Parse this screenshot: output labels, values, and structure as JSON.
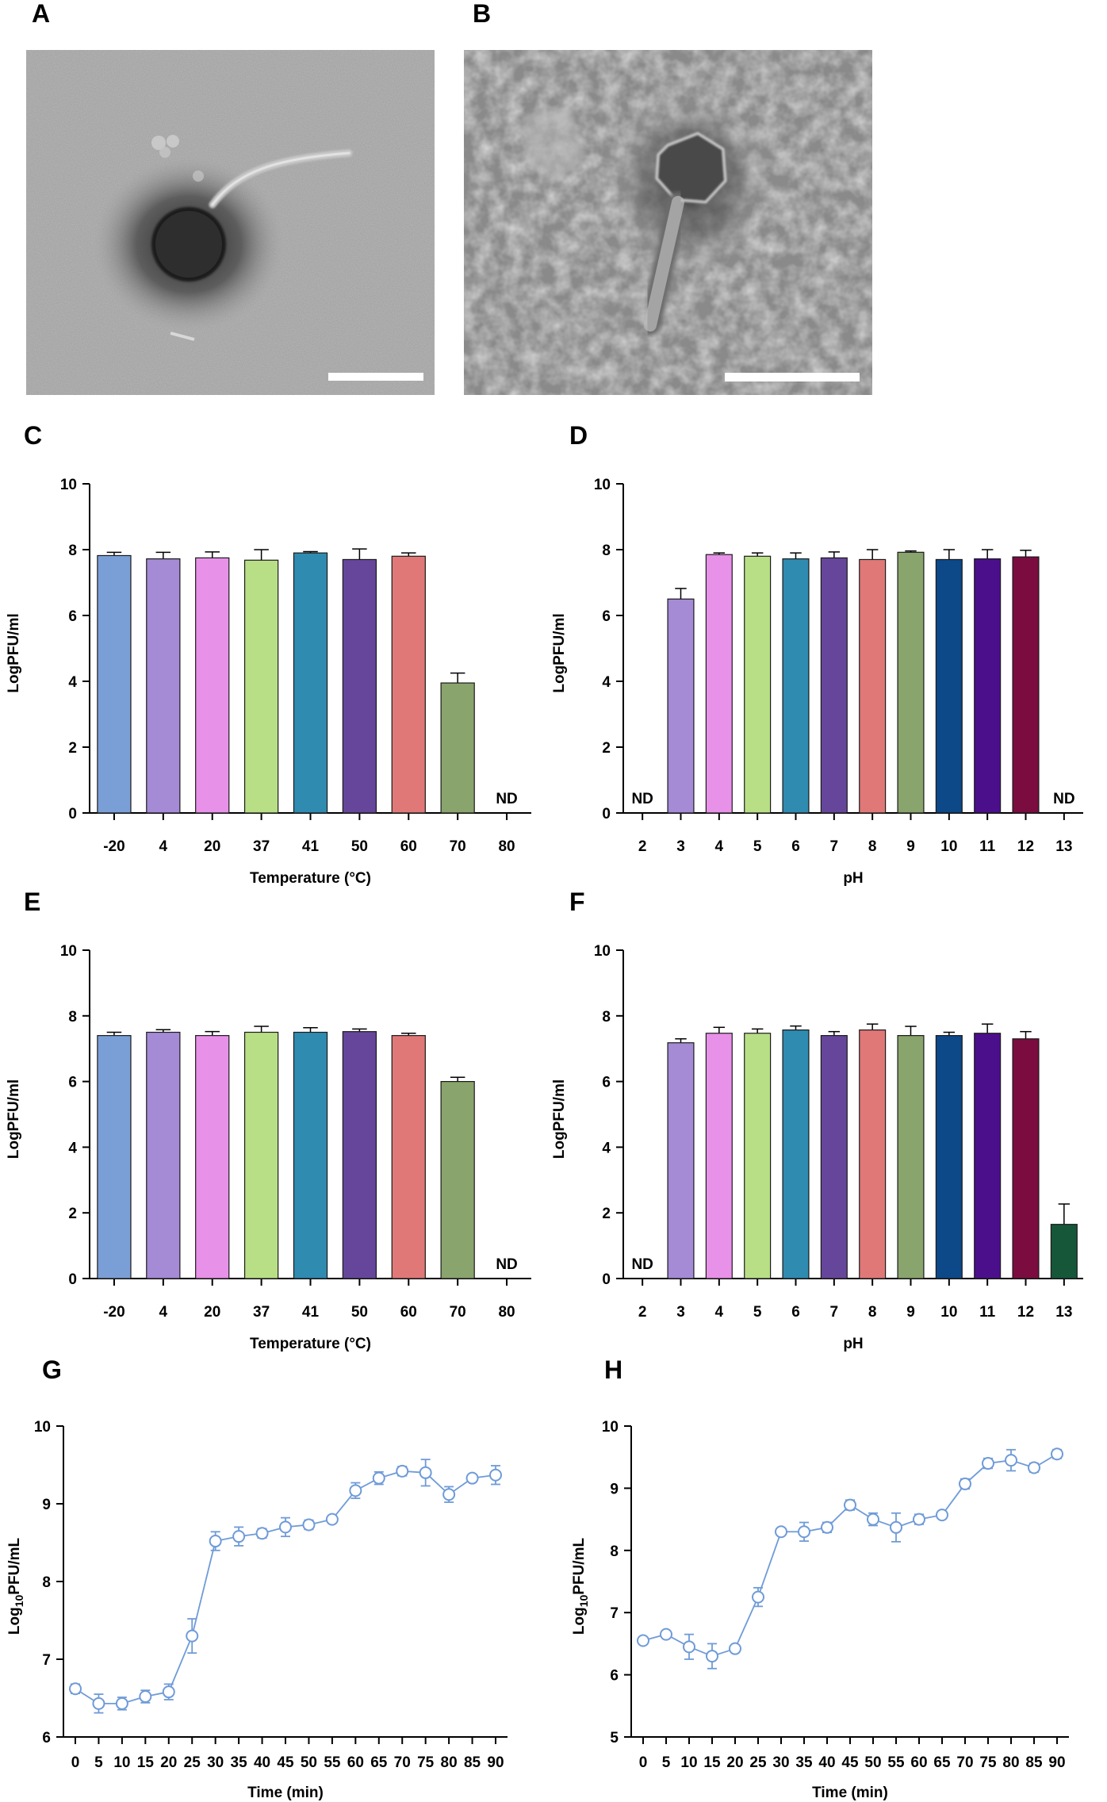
{
  "panels": {
    "A": {
      "letter": "A"
    },
    "B": {
      "letter": "B"
    }
  },
  "colors": {
    "palette": [
      "#7a9fd6",
      "#a58ad6",
      "#e891e9",
      "#b9df86",
      "#2f8bb0",
      "#66469a",
      "#e07878",
      "#89a46c",
      "#0d4888",
      "#4b0f8b",
      "#7a0c40",
      "#16573a"
    ],
    "curve": "#6f9bd8"
  },
  "chart_data": [
    {
      "letter": "C",
      "type": "bar",
      "categories": [
        "-20",
        "4",
        "20",
        "37",
        "41",
        "50",
        "60",
        "70",
        "80"
      ],
      "values": [
        7.82,
        7.72,
        7.75,
        7.68,
        7.9,
        7.7,
        7.8,
        3.95,
        null
      ],
      "errors": [
        0.1,
        0.2,
        0.18,
        0.32,
        0.04,
        0.32,
        0.1,
        0.3,
        null
      ],
      "colors": [
        0,
        1,
        2,
        3,
        4,
        5,
        6,
        7,
        null
      ],
      "nd_label": "ND",
      "xlabel": "Temperature (°C)",
      "ylabel": "LogPFU/ml",
      "ylim": [
        0,
        10
      ],
      "yticks": [
        "0",
        "2",
        "4",
        "6",
        "8",
        "10"
      ],
      "grid": false
    },
    {
      "letter": "D",
      "type": "bar",
      "categories": [
        "2",
        "3",
        "4",
        "5",
        "6",
        "7",
        "8",
        "9",
        "10",
        "11",
        "12",
        "13"
      ],
      "values": [
        null,
        6.5,
        7.85,
        7.8,
        7.72,
        7.75,
        7.7,
        7.92,
        7.7,
        7.72,
        7.78,
        null
      ],
      "errors": [
        null,
        0.32,
        0.05,
        0.1,
        0.18,
        0.18,
        0.3,
        0.04,
        0.3,
        0.28,
        0.2,
        null
      ],
      "colors": [
        null,
        1,
        2,
        3,
        4,
        5,
        6,
        7,
        8,
        9,
        10,
        null
      ],
      "nd_label": "ND",
      "xlabel": "pH",
      "ylabel": "LogPFU/ml",
      "ylim": [
        0,
        10
      ],
      "yticks": [
        "0",
        "2",
        "4",
        "6",
        "8",
        "10"
      ],
      "grid": false
    },
    {
      "letter": "E",
      "type": "bar",
      "categories": [
        "-20",
        "4",
        "20",
        "37",
        "41",
        "50",
        "60",
        "70",
        "80"
      ],
      "values": [
        7.4,
        7.5,
        7.4,
        7.5,
        7.5,
        7.52,
        7.4,
        6.0,
        null
      ],
      "errors": [
        0.1,
        0.08,
        0.12,
        0.18,
        0.14,
        0.08,
        0.07,
        0.13,
        null
      ],
      "colors": [
        0,
        1,
        2,
        3,
        4,
        5,
        6,
        7,
        null
      ],
      "nd_label": "ND",
      "xlabel": "Temperature (°C)",
      "ylabel": "LogPFU/ml",
      "ylim": [
        0,
        10
      ],
      "yticks": [
        "0",
        "2",
        "4",
        "6",
        "8",
        "10"
      ],
      "grid": false
    },
    {
      "letter": "F",
      "type": "bar",
      "categories": [
        "2",
        "3",
        "4",
        "5",
        "6",
        "7",
        "8",
        "9",
        "10",
        "11",
        "12",
        "13"
      ],
      "values": [
        null,
        7.18,
        7.47,
        7.47,
        7.57,
        7.4,
        7.57,
        7.4,
        7.4,
        7.47,
        7.3,
        1.65
      ],
      "errors": [
        null,
        0.12,
        0.18,
        0.13,
        0.12,
        0.12,
        0.18,
        0.28,
        0.1,
        0.28,
        0.22,
        0.62
      ],
      "colors": [
        null,
        1,
        2,
        3,
        4,
        5,
        6,
        7,
        8,
        9,
        10,
        11
      ],
      "nd_label": "ND",
      "xlabel": "pH",
      "ylabel": "LogPFU/ml",
      "ylim": [
        0,
        10
      ],
      "yticks": [
        "0",
        "2",
        "4",
        "6",
        "8",
        "10"
      ],
      "grid": false
    },
    {
      "letter": "G",
      "type": "line",
      "x": [
        0,
        5,
        10,
        15,
        20,
        25,
        30,
        35,
        40,
        45,
        50,
        55,
        60,
        65,
        70,
        75,
        80,
        85,
        90
      ],
      "y": [
        6.62,
        6.43,
        6.43,
        6.52,
        6.58,
        7.3,
        8.52,
        8.58,
        8.62,
        8.7,
        8.73,
        8.8,
        9.17,
        9.33,
        9.42,
        9.4,
        9.12,
        9.33,
        9.37
      ],
      "errors": [
        0.06,
        0.12,
        0.08,
        0.08,
        0.1,
        0.22,
        0.12,
        0.12,
        0.06,
        0.12,
        0.06,
        0.03,
        0.1,
        0.08,
        0.06,
        0.17,
        0.1,
        0.03,
        0.12
      ],
      "xlabel_main": "Time (min)",
      "ylabel_pre": "Log",
      "ylabel_sub": "10",
      "ylabel_post": "PFU/mL",
      "xticks": [
        "0",
        "5",
        "10",
        "15",
        "20",
        "25",
        "30",
        "35",
        "40",
        "45",
        "50",
        "55",
        "60",
        "65",
        "70",
        "75",
        "80",
        "85",
        "90"
      ],
      "ylim": [
        6,
        10
      ],
      "yticks": [
        "6",
        "7",
        "8",
        "9",
        "10"
      ],
      "grid": false
    },
    {
      "letter": "H",
      "type": "line",
      "x": [
        0,
        5,
        10,
        15,
        20,
        25,
        30,
        35,
        40,
        45,
        50,
        55,
        60,
        65,
        70,
        75,
        80,
        85,
        90
      ],
      "y": [
        6.55,
        6.65,
        6.45,
        6.3,
        6.42,
        7.25,
        8.3,
        8.3,
        8.37,
        8.73,
        8.5,
        8.37,
        8.5,
        8.57,
        9.07,
        9.4,
        9.45,
        9.33,
        9.55
      ],
      "errors": [
        0.03,
        0.03,
        0.2,
        0.2,
        0.05,
        0.15,
        0.03,
        0.15,
        0.08,
        0.08,
        0.1,
        0.23,
        0.08,
        0.03,
        0.08,
        0.08,
        0.17,
        0.07,
        0.07
      ],
      "xlabel_main": "Time (min)",
      "ylabel_pre": "Log",
      "ylabel_sub": "10",
      "ylabel_post": "PFU/mL",
      "xticks": [
        "0",
        "5",
        "10",
        "15",
        "20",
        "25",
        "30",
        "35",
        "40",
        "45",
        "50",
        "55",
        "60",
        "65",
        "70",
        "75",
        "80",
        "85",
        "90"
      ],
      "ylim": [
        5,
        10
      ],
      "yticks": [
        "5",
        "6",
        "7",
        "8",
        "9",
        "10"
      ],
      "grid": false
    }
  ]
}
